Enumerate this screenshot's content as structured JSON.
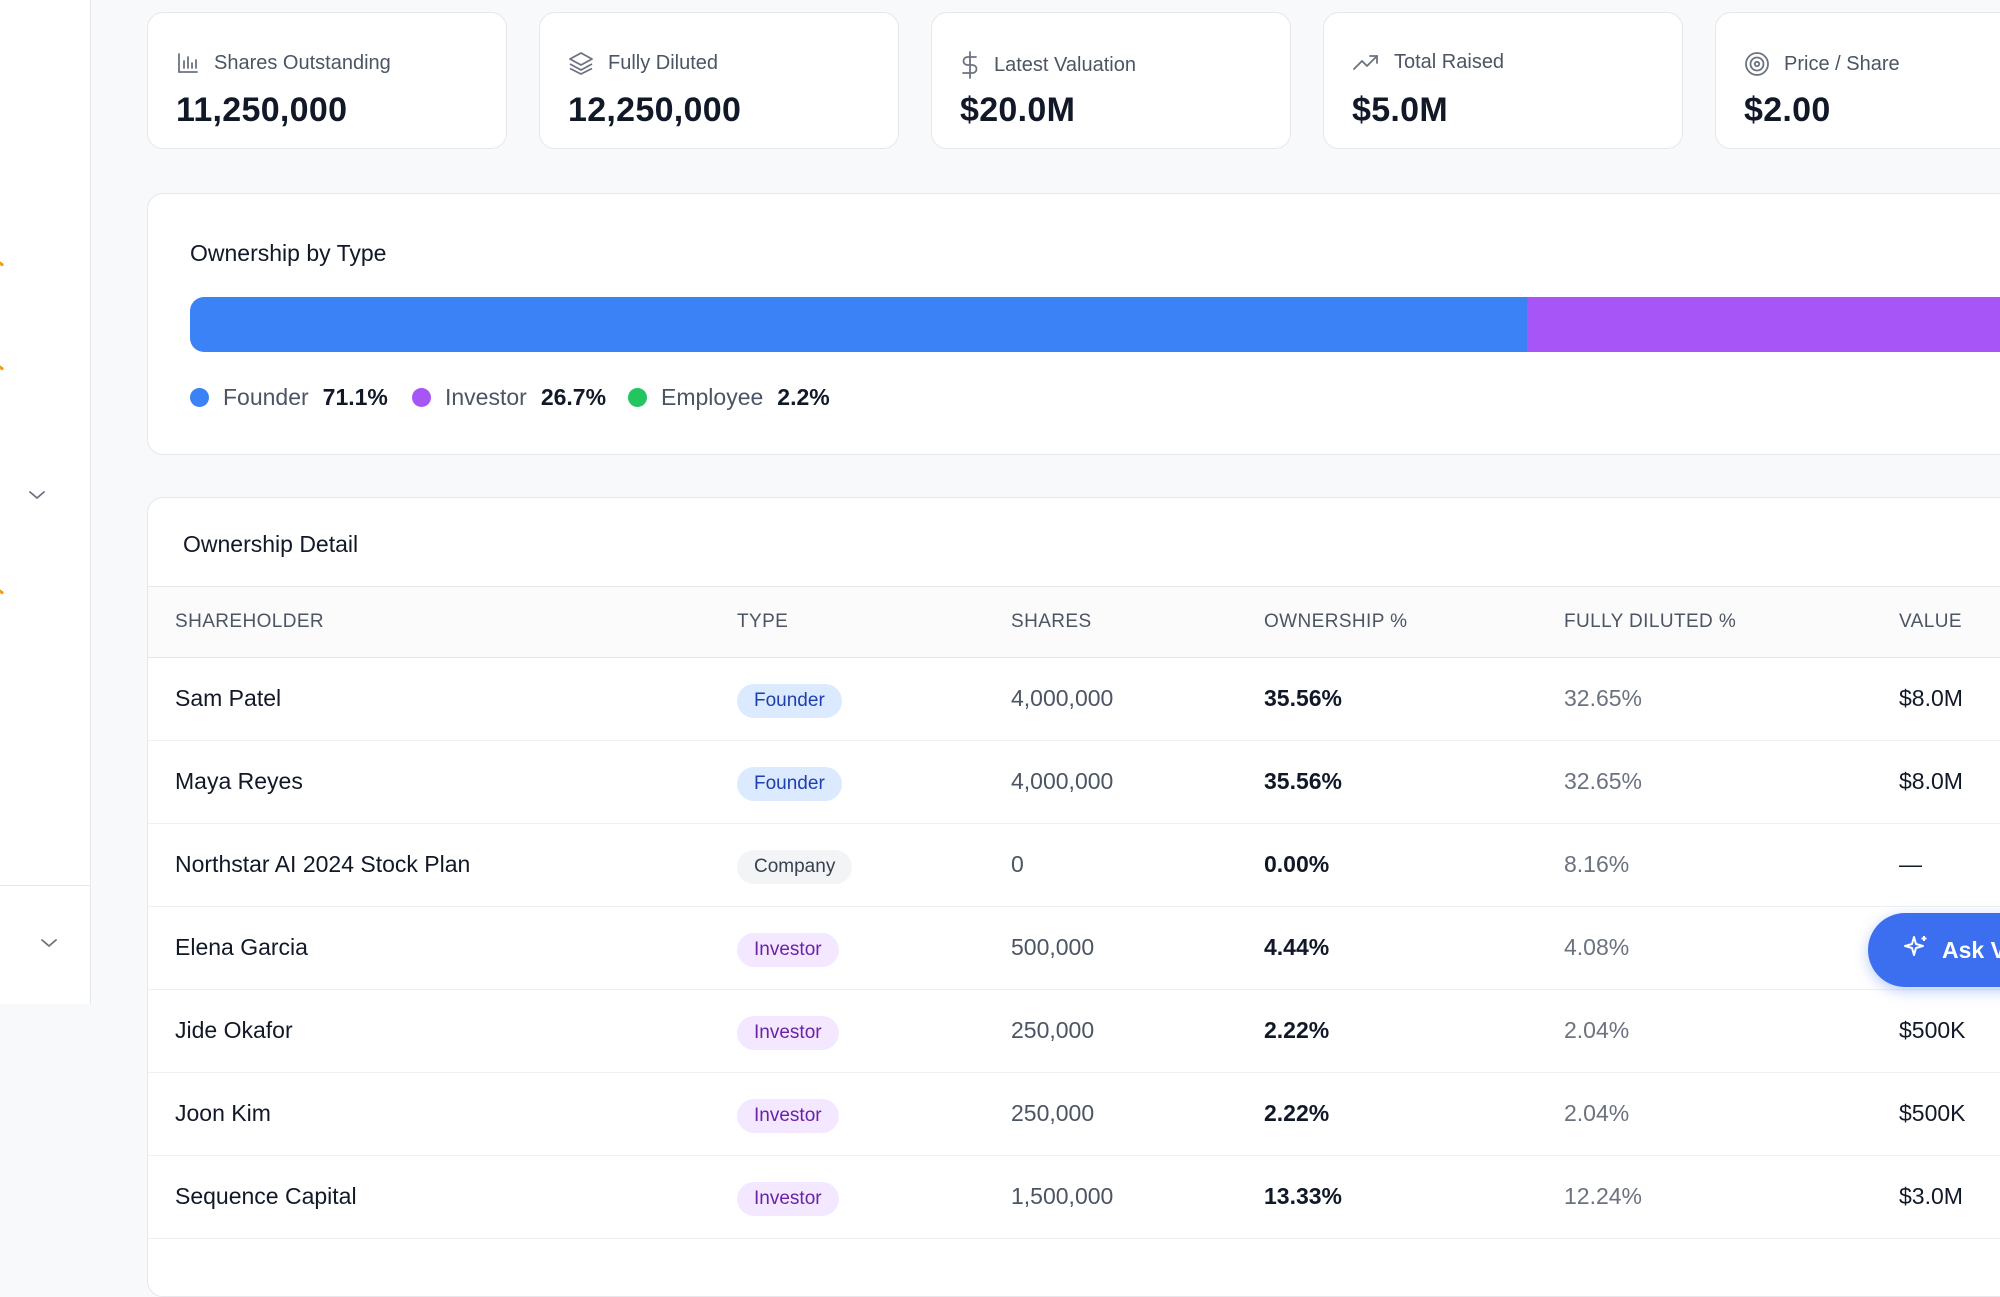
{
  "stats": [
    {
      "label": "Shares Outstanding",
      "value": "11,250,000",
      "icon": "bar-chart-icon"
    },
    {
      "label": "Fully Diluted",
      "value": "12,250,000",
      "icon": "layers-icon"
    },
    {
      "label": "Latest Valuation",
      "value": "$20.0M",
      "icon": "dollar-icon"
    },
    {
      "label": "Total Raised",
      "value": "$5.0M",
      "icon": "trending-up-icon"
    },
    {
      "label": "Price / Share",
      "value": "$2.00",
      "icon": "target-icon"
    }
  ],
  "ownership_by_type": {
    "title": "Ownership by Type",
    "segments": [
      {
        "name": "Founder",
        "pct_label": "71.1%",
        "fraction": 0.711,
        "color": "#3b82f6"
      },
      {
        "name": "Investor",
        "pct_label": "26.7%",
        "fraction": 0.267,
        "color": "#a855f7"
      },
      {
        "name": "Employee",
        "pct_label": "2.2%",
        "fraction": 0.022,
        "color": "#22c55e"
      }
    ]
  },
  "ownership_detail": {
    "title": "Ownership Detail",
    "columns": [
      "SHAREHOLDER",
      "TYPE",
      "SHARES",
      "OWNERSHIP %",
      "FULLY DILUTED %",
      "VALUE"
    ],
    "rows": [
      {
        "name": "Sam Patel",
        "type": "Founder",
        "shares": "4,000,000",
        "ownership": "35.56%",
        "fully_diluted": "32.65%",
        "value": "$8.0M"
      },
      {
        "name": "Maya Reyes",
        "type": "Founder",
        "shares": "4,000,000",
        "ownership": "35.56%",
        "fully_diluted": "32.65%",
        "value": "$8.0M"
      },
      {
        "name": "Northstar AI 2024 Stock Plan",
        "type": "Company",
        "shares": "0",
        "ownership": "0.00%",
        "fully_diluted": "8.16%",
        "value": "—"
      },
      {
        "name": "Elena Garcia",
        "type": "Investor",
        "shares": "500,000",
        "ownership": "4.44%",
        "fully_diluted": "4.08%",
        "value": ""
      },
      {
        "name": "Jide Okafor",
        "type": "Investor",
        "shares": "250,000",
        "ownership": "2.22%",
        "fully_diluted": "2.04%",
        "value": "$500K"
      },
      {
        "name": "Joon Kim",
        "type": "Investor",
        "shares": "250,000",
        "ownership": "2.22%",
        "fully_diluted": "2.04%",
        "value": "$500K"
      },
      {
        "name": "Sequence Capital",
        "type": "Investor",
        "shares": "1,500,000",
        "ownership": "13.33%",
        "fully_diluted": "12.24%",
        "value": "$3.0M"
      }
    ]
  },
  "ask_button": {
    "label": "Ask V",
    "icon": "sparkle-icon"
  }
}
